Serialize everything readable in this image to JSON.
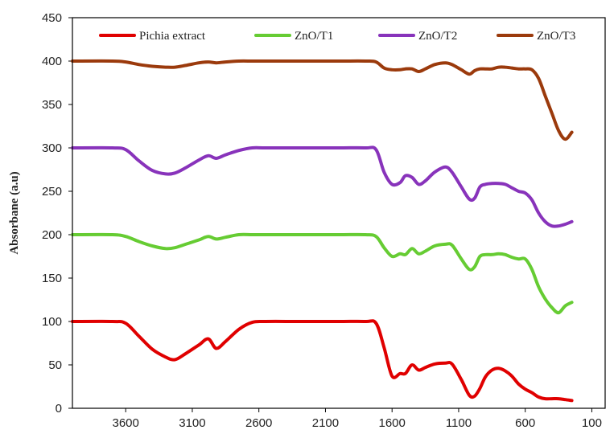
{
  "chart_data": {
    "type": "line",
    "title": "",
    "xlabel": "",
    "ylabel": "Absorbane  (a.u)",
    "xlim": [
      4000,
      0
    ],
    "x_reversed": true,
    "ylim": [
      0,
      450
    ],
    "x_ticks": [
      3600,
      3100,
      2600,
      2100,
      1600,
      1100,
      600,
      100
    ],
    "y_ticks": [
      0,
      50,
      100,
      150,
      200,
      250,
      300,
      350,
      400,
      450
    ],
    "grid": false,
    "legend_position": "top",
    "series": [
      {
        "name": "Pichia extract",
        "color": "#e00000",
        "x": [
          4000,
          3700,
          3600,
          3500,
          3400,
          3300,
          3230,
          3150,
          3050,
          2980,
          2920,
          2850,
          2750,
          2650,
          2550,
          2300,
          2000,
          1800,
          1720,
          1660,
          1600,
          1540,
          1500,
          1450,
          1400,
          1350,
          1280,
          1200,
          1150,
          1080,
          1020,
          980,
          940,
          900,
          850,
          800,
          750,
          700,
          650,
          600,
          550,
          500,
          450,
          400,
          350,
          300,
          250
        ],
        "y": [
          100,
          100,
          98,
          83,
          68,
          59,
          56,
          63,
          73,
          80,
          69,
          77,
          91,
          99,
          100,
          100,
          100,
          100,
          98,
          70,
          37,
          40,
          40,
          50,
          44,
          47,
          51,
          52,
          51,
          33,
          15,
          14,
          23,
          36,
          44,
          46,
          43,
          37,
          28,
          22,
          18,
          13,
          11,
          11,
          11,
          10,
          9
        ]
      },
      {
        "name": "ZnO/T1",
        "color": "#66cc33",
        "x": [
          4000,
          3700,
          3600,
          3500,
          3400,
          3300,
          3230,
          3150,
          3050,
          2980,
          2920,
          2850,
          2750,
          2650,
          2550,
          2300,
          2000,
          1800,
          1720,
          1660,
          1600,
          1540,
          1500,
          1450,
          1400,
          1350,
          1280,
          1200,
          1150,
          1080,
          1020,
          980,
          940,
          900,
          850,
          800,
          750,
          700,
          650,
          600,
          550,
          500,
          450,
          400,
          350,
          300,
          250
        ],
        "y": [
          200,
          200,
          198,
          192,
          187,
          184,
          185,
          189,
          194,
          198,
          195,
          197,
          200,
          200,
          200,
          200,
          200,
          200,
          198,
          185,
          175,
          178,
          177,
          184,
          178,
          181,
          187,
          189,
          188,
          172,
          160,
          163,
          175,
          177,
          177,
          178,
          177,
          174,
          172,
          172,
          160,
          140,
          126,
          116,
          110,
          118,
          122
        ]
      },
      {
        "name": "ZnO/T2",
        "color": "#8833bb",
        "x": [
          4000,
          3700,
          3600,
          3500,
          3400,
          3300,
          3230,
          3150,
          3050,
          2980,
          2920,
          2850,
          2750,
          2650,
          2550,
          2300,
          2000,
          1800,
          1720,
          1660,
          1600,
          1540,
          1500,
          1450,
          1400,
          1350,
          1280,
          1200,
          1150,
          1080,
          1020,
          980,
          940,
          900,
          850,
          800,
          750,
          700,
          650,
          600,
          550,
          500,
          450,
          400,
          350,
          300,
          250
        ],
        "y": [
          300,
          300,
          298,
          285,
          274,
          270,
          271,
          277,
          286,
          291,
          288,
          292,
          297,
          300,
          300,
          300,
          300,
          300,
          298,
          272,
          258,
          260,
          268,
          266,
          258,
          262,
          272,
          278,
          272,
          255,
          241,
          242,
          255,
          258,
          259,
          259,
          258,
          254,
          250,
          248,
          240,
          225,
          215,
          210,
          210,
          212,
          215
        ]
      },
      {
        "name": "ZnO/T3",
        "color": "#9b3a0c",
        "x": [
          4000,
          3700,
          3600,
          3500,
          3400,
          3300,
          3230,
          3150,
          3050,
          2980,
          2920,
          2850,
          2750,
          2650,
          2550,
          2300,
          2000,
          1800,
          1720,
          1660,
          1600,
          1540,
          1500,
          1450,
          1400,
          1350,
          1280,
          1200,
          1150,
          1080,
          1020,
          980,
          940,
          900,
          850,
          800,
          750,
          700,
          650,
          600,
          550,
          500,
          450,
          400,
          350,
          300,
          250
        ],
        "y": [
          400,
          400,
          399,
          396,
          394,
          393,
          393,
          395,
          398,
          399,
          398,
          399,
          400,
          400,
          400,
          400,
          400,
          400,
          399,
          392,
          390,
          390,
          391,
          391,
          388,
          391,
          396,
          398,
          396,
          390,
          385,
          389,
          391,
          391,
          391,
          393,
          393,
          392,
          391,
          391,
          390,
          380,
          360,
          340,
          320,
          310,
          318
        ]
      }
    ]
  }
}
